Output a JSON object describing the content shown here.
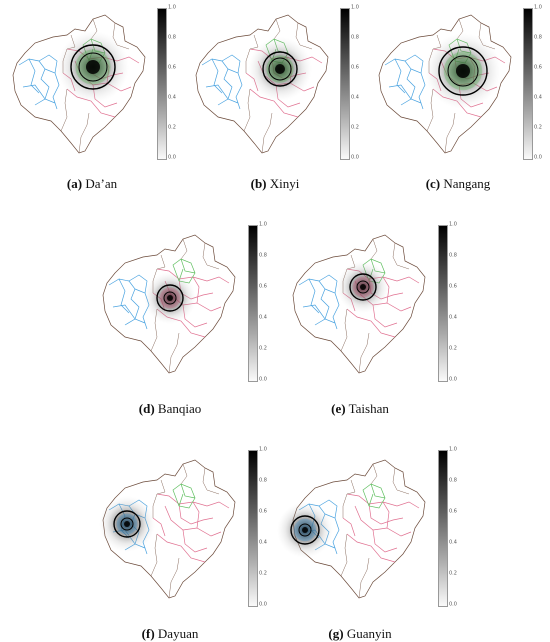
{
  "colorbar_ticks": [
    "1.0",
    "0.8",
    "0.6",
    "0.4",
    "0.2",
    "0.0"
  ],
  "panels": [
    {
      "letter": "(a)",
      "name": "Da’an",
      "hotspot": "daan"
    },
    {
      "letter": "(b)",
      "name": "Xinyi",
      "hotspot": "xinyi"
    },
    {
      "letter": "(c)",
      "name": "Nangang",
      "hotspot": "nangang"
    },
    {
      "letter": "(d)",
      "name": "Banqiao",
      "hotspot": "banqiao"
    },
    {
      "letter": "(e)",
      "name": "Taishan",
      "hotspot": "taishan"
    },
    {
      "letter": "(f)",
      "name": "Dayuan",
      "hotspot": "dayuan"
    },
    {
      "letter": "(g)",
      "name": "Guanyin",
      "hotspot": "guanyin"
    }
  ],
  "colors": {
    "outline": "#6b4a3a",
    "blue_region": "#4aa3e0",
    "pink_region": "#e07090",
    "green_region": "#5fbf5f",
    "density_dark": "#2a5a2a",
    "contour": "#000000"
  }
}
